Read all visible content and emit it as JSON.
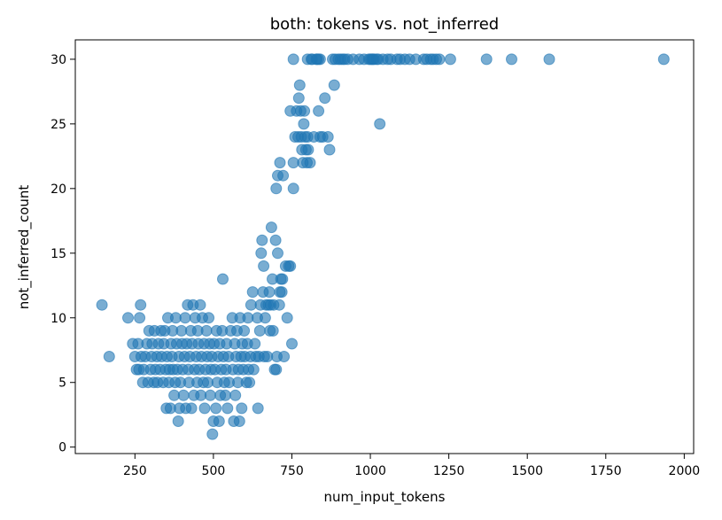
{
  "chart_data": {
    "type": "scatter",
    "title": "both: tokens vs. not_inferred",
    "xlabel": "num_input_tokens",
    "ylabel": "not_inferred_count",
    "xlim": [
      60,
      2030
    ],
    "ylim": [
      -0.5,
      31.5
    ],
    "xticks": [
      250,
      500,
      750,
      1000,
      1250,
      1500,
      1750,
      2000
    ],
    "yticks": [
      0,
      5,
      10,
      15,
      20,
      25,
      30
    ],
    "grid": false,
    "marker_color": "#1f77b4",
    "marker_alpha": 0.6,
    "points": [
      [
        145,
        11
      ],
      [
        168,
        7
      ],
      [
        228,
        10
      ],
      [
        243,
        8
      ],
      [
        250,
        7
      ],
      [
        255,
        6
      ],
      [
        260,
        8
      ],
      [
        263,
        6
      ],
      [
        265,
        10
      ],
      [
        268,
        11
      ],
      [
        270,
        7
      ],
      [
        275,
        5
      ],
      [
        278,
        6
      ],
      [
        283,
        7
      ],
      [
        288,
        8
      ],
      [
        292,
        5
      ],
      [
        295,
        9
      ],
      [
        300,
        6
      ],
      [
        303,
        7
      ],
      [
        305,
        8
      ],
      [
        310,
        5
      ],
      [
        312,
        9
      ],
      [
        315,
        6
      ],
      [
        320,
        7
      ],
      [
        322,
        5
      ],
      [
        325,
        8
      ],
      [
        330,
        6
      ],
      [
        333,
        9
      ],
      [
        335,
        7
      ],
      [
        340,
        5
      ],
      [
        342,
        8
      ],
      [
        345,
        9
      ],
      [
        348,
        6
      ],
      [
        350,
        3
      ],
      [
        352,
        7
      ],
      [
        355,
        10
      ],
      [
        358,
        5
      ],
      [
        360,
        6
      ],
      [
        363,
        3
      ],
      [
        365,
        8
      ],
      [
        368,
        7
      ],
      [
        370,
        9
      ],
      [
        372,
        6
      ],
      [
        375,
        4
      ],
      [
        378,
        5
      ],
      [
        380,
        10
      ],
      [
        383,
        8
      ],
      [
        385,
        6
      ],
      [
        388,
        2
      ],
      [
        390,
        7
      ],
      [
        392,
        3
      ],
      [
        395,
        5
      ],
      [
        398,
        9
      ],
      [
        400,
        8
      ],
      [
        402,
        6
      ],
      [
        405,
        4
      ],
      [
        408,
        7
      ],
      [
        410,
        10
      ],
      [
        412,
        3
      ],
      [
        415,
        8
      ],
      [
        418,
        11
      ],
      [
        420,
        6
      ],
      [
        422,
        5
      ],
      [
        425,
        7
      ],
      [
        428,
        9
      ],
      [
        430,
        3
      ],
      [
        432,
        8
      ],
      [
        435,
        11
      ],
      [
        438,
        4
      ],
      [
        440,
        6
      ],
      [
        442,
        10
      ],
      [
        445,
        7
      ],
      [
        448,
        5
      ],
      [
        450,
        9
      ],
      [
        452,
        8
      ],
      [
        455,
        6
      ],
      [
        458,
        11
      ],
      [
        460,
        4
      ],
      [
        462,
        7
      ],
      [
        465,
        10
      ],
      [
        468,
        5
      ],
      [
        470,
        8
      ],
      [
        472,
        3
      ],
      [
        475,
        6
      ],
      [
        478,
        9
      ],
      [
        480,
        7
      ],
      [
        482,
        5
      ],
      [
        485,
        10
      ],
      [
        488,
        8
      ],
      [
        490,
        4
      ],
      [
        492,
        6
      ],
      [
        495,
        7
      ],
      [
        497,
        1
      ],
      [
        500,
        2
      ],
      [
        502,
        8
      ],
      [
        505,
        6
      ],
      [
        508,
        3
      ],
      [
        510,
        9
      ],
      [
        512,
        5
      ],
      [
        515,
        7
      ],
      [
        518,
        2
      ],
      [
        520,
        8
      ],
      [
        522,
        4
      ],
      [
        525,
        6
      ],
      [
        528,
        9
      ],
      [
        530,
        13
      ],
      [
        532,
        7
      ],
      [
        535,
        5
      ],
      [
        538,
        4
      ],
      [
        540,
        6
      ],
      [
        542,
        8
      ],
      [
        545,
        3
      ],
      [
        548,
        7
      ],
      [
        550,
        5
      ],
      [
        555,
        9
      ],
      [
        560,
        10
      ],
      [
        562,
        6
      ],
      [
        565,
        2
      ],
      [
        568,
        8
      ],
      [
        570,
        4
      ],
      [
        572,
        7
      ],
      [
        575,
        9
      ],
      [
        578,
        5
      ],
      [
        580,
        6
      ],
      [
        583,
        2
      ],
      [
        585,
        10
      ],
      [
        588,
        7
      ],
      [
        590,
        3
      ],
      [
        592,
        8
      ],
      [
        595,
        6
      ],
      [
        598,
        9
      ],
      [
        600,
        7
      ],
      [
        605,
        5
      ],
      [
        608,
        8
      ],
      [
        610,
        10
      ],
      [
        612,
        6
      ],
      [
        615,
        5
      ],
      [
        618,
        7
      ],
      [
        620,
        11
      ],
      [
        625,
        12
      ],
      [
        628,
        6
      ],
      [
        632,
        8
      ],
      [
        635,
        7
      ],
      [
        640,
        10
      ],
      [
        642,
        3
      ],
      [
        645,
        7
      ],
      [
        648,
        9
      ],
      [
        650,
        11
      ],
      [
        652,
        15
      ],
      [
        655,
        16
      ],
      [
        658,
        12
      ],
      [
        660,
        14
      ],
      [
        662,
        7
      ],
      [
        665,
        10
      ],
      [
        668,
        11
      ],
      [
        672,
        7
      ],
      [
        675,
        11
      ],
      [
        678,
        12
      ],
      [
        680,
        9
      ],
      [
        682,
        11
      ],
      [
        685,
        17
      ],
      [
        688,
        13
      ],
      [
        690,
        9
      ],
      [
        692,
        11
      ],
      [
        695,
        6
      ],
      [
        698,
        16
      ],
      [
        700,
        6
      ],
      [
        702,
        7
      ],
      [
        705,
        15
      ],
      [
        710,
        11
      ],
      [
        712,
        12
      ],
      [
        715,
        13
      ],
      [
        718,
        12
      ],
      [
        720,
        13
      ],
      [
        725,
        7
      ],
      [
        730,
        14
      ],
      [
        735,
        10
      ],
      [
        740,
        14
      ],
      [
        745,
        14
      ],
      [
        750,
        8
      ],
      [
        700,
        20
      ],
      [
        705,
        21
      ],
      [
        712,
        22
      ],
      [
        722,
        21
      ],
      [
        745,
        26
      ],
      [
        755,
        22
      ],
      [
        755,
        20
      ],
      [
        760,
        24
      ],
      [
        765,
        26
      ],
      [
        770,
        24
      ],
      [
        772,
        27
      ],
      [
        775,
        28
      ],
      [
        778,
        26
      ],
      [
        780,
        24
      ],
      [
        782,
        23
      ],
      [
        785,
        22
      ],
      [
        788,
        25
      ],
      [
        790,
        26
      ],
      [
        792,
        24
      ],
      [
        795,
        23
      ],
      [
        798,
        22
      ],
      [
        800,
        24
      ],
      [
        802,
        23
      ],
      [
        808,
        22
      ],
      [
        812,
        30
      ],
      [
        820,
        24
      ],
      [
        830,
        30
      ],
      [
        835,
        26
      ],
      [
        840,
        24
      ],
      [
        848,
        24
      ],
      [
        855,
        27
      ],
      [
        865,
        24
      ],
      [
        870,
        23
      ],
      [
        885,
        28
      ],
      [
        755,
        30
      ],
      [
        800,
        30
      ],
      [
        815,
        30
      ],
      [
        828,
        30
      ],
      [
        835,
        30
      ],
      [
        840,
        30
      ],
      [
        880,
        30
      ],
      [
        888,
        30
      ],
      [
        898,
        30
      ],
      [
        905,
        30
      ],
      [
        912,
        30
      ],
      [
        918,
        30
      ],
      [
        928,
        30
      ],
      [
        945,
        30
      ],
      [
        965,
        30
      ],
      [
        980,
        30
      ],
      [
        995,
        30
      ],
      [
        1000,
        30
      ],
      [
        1005,
        30
      ],
      [
        1008,
        30
      ],
      [
        1012,
        30
      ],
      [
        1020,
        30
      ],
      [
        1025,
        30
      ],
      [
        1040,
        30
      ],
      [
        1055,
        30
      ],
      [
        1065,
        30
      ],
      [
        1085,
        30
      ],
      [
        1095,
        30
      ],
      [
        1110,
        30
      ],
      [
        1125,
        30
      ],
      [
        1145,
        30
      ],
      [
        1170,
        30
      ],
      [
        1180,
        30
      ],
      [
        1192,
        30
      ],
      [
        1200,
        30
      ],
      [
        1210,
        30
      ],
      [
        1220,
        30
      ],
      [
        1255,
        30
      ],
      [
        1030,
        25
      ],
      [
        1370,
        30
      ],
      [
        1450,
        30
      ],
      [
        1570,
        30
      ],
      [
        1935,
        30
      ]
    ]
  }
}
